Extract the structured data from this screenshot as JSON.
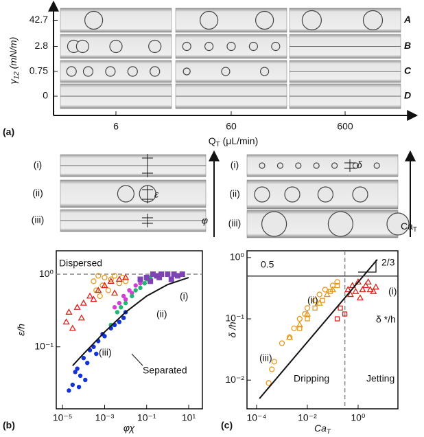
{
  "panel_a": {
    "label": "(a)",
    "y_axis_label": [
      "γ",
      "12",
      " (mN/m)"
    ],
    "row_values": [
      "42.7",
      "2.8",
      "0.75",
      "0"
    ],
    "row_labels": [
      "A",
      "B",
      "C",
      "D"
    ],
    "column_values": [
      "6",
      "60",
      "600"
    ],
    "x_axis_label": [
      "Q",
      "T",
      " (μL/min)"
    ]
  },
  "middle": {
    "left_labels": [
      "(i)",
      "(ii)",
      "(iii)"
    ],
    "left_symbol": "ε",
    "left_arrow_label": "φ",
    "right_labels": [
      "(i)",
      "(ii)",
      "(iii)"
    ],
    "right_symbol": "δ",
    "right_arrow_label": [
      "Ca",
      "T"
    ]
  },
  "chart_data": [
    {
      "type": "scatter",
      "label": "(b)",
      "y_axis_label": "ε/h",
      "x_axis_label": "φχ",
      "log_x": true,
      "log_y": true,
      "xlim": [
        5e-06,
        45
      ],
      "ylim": [
        0.014,
        2.1
      ],
      "xticks": [
        {
          "value": 1e-05,
          "label": "10⁻⁵"
        },
        {
          "value": 0.001,
          "label": "10⁻³"
        },
        {
          "value": 0.1,
          "label": "10⁻¹"
        },
        {
          "value": 10,
          "label": "10¹"
        }
      ],
      "yticks": [
        {
          "value": 1,
          "label": "10⁰"
        },
        {
          "value": 0.1,
          "label": "10⁻¹"
        }
      ],
      "hline": {
        "value": 1
      },
      "series": [
        {
          "marker": "circle-open",
          "color": "#e69a1c",
          "x": [
            0.0003,
            0.0005,
            0.0008,
            0.001,
            0.0015,
            0.002,
            0.003,
            0.005,
            0.007,
            0.01,
            0.0004,
            0.0006
          ],
          "values": [
            0.8,
            0.95,
            0.7,
            0.9,
            0.6,
            0.85,
            0.95,
            0.75,
            0.9,
            0.8,
            0.6,
            0.5
          ]
        },
        {
          "marker": "triangle-open",
          "color": "#e0201c",
          "x": [
            1.5e-05,
            2e-05,
            3e-05,
            5e-05,
            8e-05,
            0.0001,
            0.0002,
            0.0003,
            0.0005,
            0.001,
            0.002,
            0.005,
            0.01,
            0.003
          ],
          "values": [
            0.22,
            0.3,
            0.18,
            0.35,
            0.25,
            0.4,
            0.5,
            0.45,
            0.6,
            0.7,
            0.8,
            0.85,
            0.9,
            0.55
          ]
        },
        {
          "marker": "dot",
          "color": "#d33fd3",
          "x": [
            0.003,
            0.005,
            0.008,
            0.01,
            0.015,
            0.02,
            0.03,
            0.05
          ],
          "values": [
            0.35,
            0.4,
            0.5,
            0.45,
            0.6,
            0.55,
            0.7,
            0.75
          ]
        },
        {
          "marker": "dot",
          "color": "#22b573",
          "x": [
            0.002,
            0.004,
            0.006,
            0.01,
            0.02,
            0.03,
            0.05,
            0.08,
            0.1,
            0.15,
            0.2,
            0.3
          ],
          "values": [
            0.2,
            0.3,
            0.35,
            0.4,
            0.5,
            0.6,
            0.65,
            0.75,
            0.85,
            0.9,
            1,
            0.95
          ]
        },
        {
          "marker": "square",
          "color": "#7e44b5",
          "x": [
            0.05,
            0.1,
            0.2,
            0.3,
            0.5,
            1,
            2,
            3,
            5,
            0.15,
            0.4,
            1.5
          ],
          "values": [
            0.85,
            0.9,
            1,
            0.95,
            1,
            1,
            1,
            0.95,
            1,
            0.8,
            0.9,
            0.85
          ]
        },
        {
          "marker": "dot",
          "color": "#1433d6",
          "x": [
            2e-05,
            3e-05,
            4e-05,
            5e-05,
            7e-05,
            0.0001,
            0.00015,
            0.0002,
            0.0003,
            0.0005,
            0.0008,
            0.001,
            0.002,
            0.003,
            0.005,
            0.008,
            0.01,
            0.00012,
            6e-05,
            0.0004
          ],
          "values": [
            0.025,
            0.03,
            0.045,
            0.05,
            0.04,
            0.07,
            0.06,
            0.09,
            0.1,
            0.12,
            0.15,
            0.14,
            0.18,
            0.2,
            0.22,
            0.25,
            0.3,
            0.035,
            0.028,
            0.08
          ]
        }
      ],
      "fit": {
        "x": [
          3e-05,
          0.0001,
          0.001,
          0.01,
          0.1,
          1,
          10
        ],
        "values": [
          0.055,
          0.08,
          0.16,
          0.3,
          0.5,
          0.72,
          0.9
        ]
      },
      "annotations": [
        "Dispersed",
        "Separated",
        "(i)",
        "(ii)",
        "(iii)"
      ]
    },
    {
      "type": "scatter",
      "label": "(c)",
      "y_axis_label": "δ /h",
      "x_axis_label": [
        "Ca",
        "T"
      ],
      "log_x": true,
      "log_y": true,
      "xlim": [
        4.2e-05,
        37
      ],
      "ylim": [
        0.0034,
        1.29
      ],
      "xticks": [
        {
          "value": 0.0001,
          "label": "10⁻⁴"
        },
        {
          "value": 0.01,
          "label": "10⁻²"
        },
        {
          "value": 1,
          "label": "10⁰"
        }
      ],
      "yticks": [
        {
          "value": 1,
          "label": "10⁰"
        },
        {
          "value": 0.1,
          "label": "10⁻¹"
        },
        {
          "value": 0.01,
          "label": "10⁻²"
        }
      ],
      "hline": {
        "value": 0.5,
        "label": "0.5"
      },
      "vline": {
        "value": 0.3
      },
      "series": [
        {
          "marker": "circle-open",
          "color": "#e69a1c",
          "x": [
            0.0003,
            0.0004,
            0.0005,
            0.001,
            0.002,
            0.003,
            0.005,
            0.008,
            0.01,
            0.02,
            0.03,
            0.05,
            0.1,
            0.15
          ],
          "values": [
            0.009,
            0.015,
            0.02,
            0.04,
            0.05,
            0.07,
            0.1,
            0.12,
            0.15,
            0.2,
            0.25,
            0.3,
            0.35,
            0.4
          ]
        },
        {
          "marker": "triangle-open",
          "color": "#e69a1c",
          "x": [
            0.002,
            0.005,
            0.01,
            0.03,
            0.06,
            0.1
          ],
          "values": [
            0.05,
            0.08,
            0.12,
            0.18,
            0.25,
            0.3
          ]
        },
        {
          "marker": "square-open",
          "color": "#e69a1c",
          "x": [
            0.005,
            0.01,
            0.02,
            0.04,
            0.08,
            0.15
          ],
          "values": [
            0.07,
            0.1,
            0.15,
            0.2,
            0.28,
            0.35
          ]
        },
        {
          "marker": "square-open",
          "color": "#e0201c",
          "x": [
            0.2,
            0.3,
            0.15
          ],
          "values": [
            0.15,
            0.12,
            0.1
          ]
        },
        {
          "marker": "triangle-open",
          "color": "#e0201c",
          "x": [
            0.4,
            0.6,
            0.8,
            1,
            1.5,
            2,
            3,
            5,
            0.5,
            1.2,
            2.5,
            4
          ],
          "values": [
            0.3,
            0.35,
            0.28,
            0.4,
            0.3,
            0.35,
            0.3,
            0.33,
            0.25,
            0.22,
            0.4,
            0.28
          ]
        }
      ],
      "fit": {
        "x": [
          0.00013,
          5.7
        ],
        "values": [
          0.005,
          0.93
        ]
      },
      "annotations": [
        "Dripping",
        "Jetting",
        "(ii)",
        "(iii)",
        "(i)",
        "δ */h",
        "2/3"
      ]
    }
  ]
}
